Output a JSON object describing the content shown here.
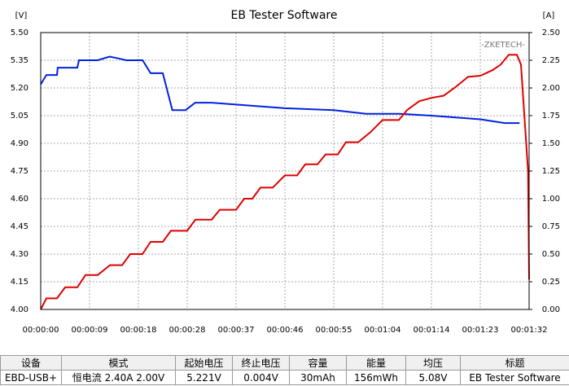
{
  "chart_data": {
    "type": "line",
    "title": "EB Tester Software",
    "ylabel": "[V]",
    "y2label": "[A]",
    "watermark": "-ZKETECH-",
    "xlim": [
      0,
      92
    ],
    "xticks": [
      {
        "value": 0,
        "label": "00:00:00"
      },
      {
        "value": 9.2,
        "label": "00:00:09"
      },
      {
        "value": 18.4,
        "label": "00:00:18"
      },
      {
        "value": 27.6,
        "label": "00:00:28"
      },
      {
        "value": 36.8,
        "label": "00:00:37"
      },
      {
        "value": 46,
        "label": "00:00:46"
      },
      {
        "value": 55.2,
        "label": "00:00:55"
      },
      {
        "value": 64.4,
        "label": "00:01:04"
      },
      {
        "value": 73.6,
        "label": "00:01:14"
      },
      {
        "value": 82.8,
        "label": "00:01:23"
      },
      {
        "value": 92,
        "label": "00:01:32"
      }
    ],
    "ylim": [
      4.0,
      5.5
    ],
    "yticks": [
      {
        "value": 4.0,
        "label": "4.00"
      },
      4.15,
      {
        "value": 4.3,
        "label": "4.30"
      },
      4.45,
      {
        "value": 4.6,
        "label": "4.60"
      },
      4.75,
      {
        "value": 4.9,
        "label": "4.90"
      },
      5.05,
      {
        "value": 5.2,
        "label": "5.20"
      },
      5.35,
      {
        "value": 5.5,
        "label": "5.50"
      }
    ],
    "y2lim": [
      0,
      2.5
    ],
    "y2ticks": [
      {
        "value": 0,
        "label": "0.00"
      },
      0.25,
      {
        "value": 0.5,
        "label": "0.50"
      },
      0.75,
      {
        "value": 1.0,
        "label": "1.00"
      },
      1.25,
      {
        "value": 1.5,
        "label": "1.50"
      },
      1.75,
      {
        "value": 2.0,
        "label": "2.00"
      },
      2.25,
      {
        "value": 2.5,
        "label": "2.50"
      }
    ],
    "grid": true,
    "series": [
      {
        "color": "#0022dd",
        "x": [
          0,
          1.07,
          3.07,
          3.2,
          6.9,
          7.2,
          10.7,
          13.0,
          14.6,
          16.1,
          19.2,
          20.7,
          23.0,
          24.8,
          27.3,
          29.1,
          32.2,
          36.8,
          46.0,
          55.2,
          61.3,
          67.5,
          73.6,
          82.8,
          87.4,
          90.2
        ],
        "values": [
          5.22,
          5.27,
          5.27,
          5.31,
          5.31,
          5.35,
          5.35,
          5.37,
          5.36,
          5.35,
          5.35,
          5.28,
          5.28,
          5.08,
          5.08,
          5.12,
          5.12,
          5.11,
          5.09,
          5.08,
          5.06,
          5.06,
          5.05,
          5.03,
          5.01,
          5.01
        ]
      },
      {
        "color": "#e00000",
        "axis": "y2",
        "x": [
          0,
          1.07,
          3.07,
          4.6,
          6.9,
          8.43,
          10.73,
          13.03,
          15.33,
          16.87,
          19.17,
          20.7,
          23.0,
          24.53,
          27.6,
          29.13,
          32.2,
          33.73,
          36.8,
          38.33,
          39.87,
          41.4,
          43.7,
          46.0,
          48.3,
          49.83,
          52.13,
          53.67,
          55.97,
          57.5,
          59.8,
          62.1,
          64.4,
          67.47,
          69.0,
          71.3,
          73.6,
          75.9,
          78.2,
          80.5,
          82.8,
          85.1,
          86.63,
          88.17,
          89.7,
          90.47,
          91.8,
          92.0
        ],
        "values": [
          0,
          0.1,
          0.1,
          0.2,
          0.2,
          0.31,
          0.31,
          0.4,
          0.4,
          0.5,
          0.5,
          0.61,
          0.61,
          0.71,
          0.71,
          0.81,
          0.81,
          0.9,
          0.9,
          1.0,
          1.0,
          1.1,
          1.1,
          1.21,
          1.21,
          1.31,
          1.31,
          1.4,
          1.4,
          1.51,
          1.51,
          1.6,
          1.71,
          1.71,
          1.8,
          1.88,
          1.91,
          1.93,
          2.01,
          2.1,
          2.11,
          2.16,
          2.21,
          2.3,
          2.3,
          2.21,
          1.25,
          0.27
        ]
      }
    ]
  },
  "table": {
    "header": [
      "设备",
      "模式",
      "起始电压",
      "终止电压",
      "容量",
      "能量",
      "均压",
      "标题"
    ],
    "row": [
      "EBD-USB+",
      "恒电流 2.40A 2.00V",
      "5.221V",
      "0.004V",
      "30mAh",
      "156mWh",
      "5.08V",
      "EB Tester Software"
    ]
  }
}
